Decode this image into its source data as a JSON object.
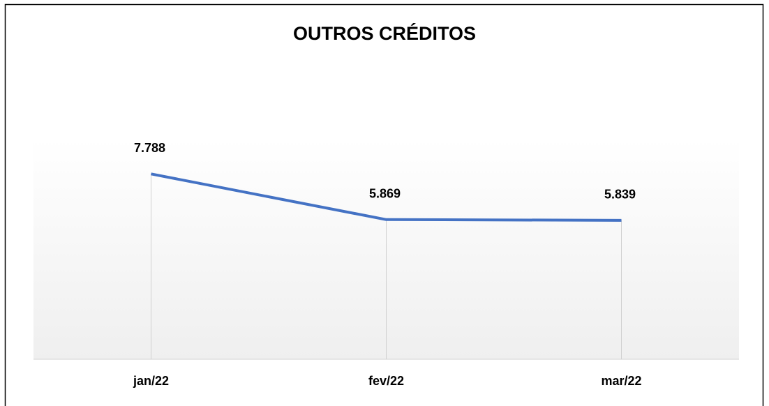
{
  "chart_data": {
    "type": "line",
    "title": "OUTROS  CRÉDITOS",
    "categories": [
      "jan/22",
      "fev/22",
      "mar/22"
    ],
    "values": [
      7788,
      5869,
      5839
    ],
    "value_labels": [
      "7.788",
      "5.869",
      "5.839"
    ],
    "color": "#4472c4",
    "ylim": [
      0,
      9000
    ]
  }
}
